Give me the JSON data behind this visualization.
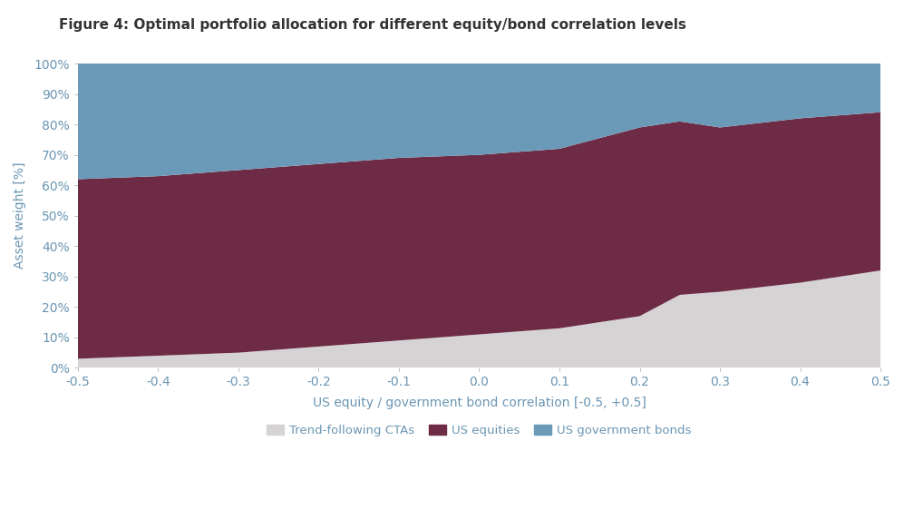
{
  "title": "Figure 4: Optimal portfolio allocation for different equity/bond correlation levels",
  "xlabel": "US equity / government bond correlation [-0.5, +0.5]",
  "ylabel": "Asset weight [%]",
  "x": [
    -0.5,
    -0.4,
    -0.3,
    -0.2,
    -0.1,
    0.0,
    0.1,
    0.2,
    0.25,
    0.3,
    0.4,
    0.5
  ],
  "cta": [
    3,
    4,
    5,
    7,
    9,
    11,
    13,
    17,
    24,
    25,
    28,
    32
  ],
  "eq_top": [
    62,
    63,
    65,
    67,
    69,
    70,
    72,
    79,
    81,
    79,
    82,
    84
  ],
  "color_cta": "#d5d3d3",
  "color_equities": "#6d2b45",
  "color_bonds": "#6b9ab8",
  "background_color": "#ffffff",
  "legend_labels": [
    "Trend-following CTAs",
    "US equities",
    "US government bonds"
  ],
  "ylim": [
    0,
    100
  ],
  "xlim": [
    -0.5,
    0.5
  ],
  "yticks": [
    0,
    10,
    20,
    30,
    40,
    50,
    60,
    70,
    80,
    90,
    100
  ],
  "xticks": [
    -0.5,
    -0.4,
    -0.3,
    -0.2,
    -0.1,
    0.0,
    0.1,
    0.2,
    0.3,
    0.4,
    0.5
  ],
  "tick_label_color": "#6b96b3",
  "axis_label_color": "#6b96b3",
  "title_color": "#333333",
  "title_fontsize": 11,
  "axis_label_fontsize": 10,
  "tick_fontsize": 10
}
